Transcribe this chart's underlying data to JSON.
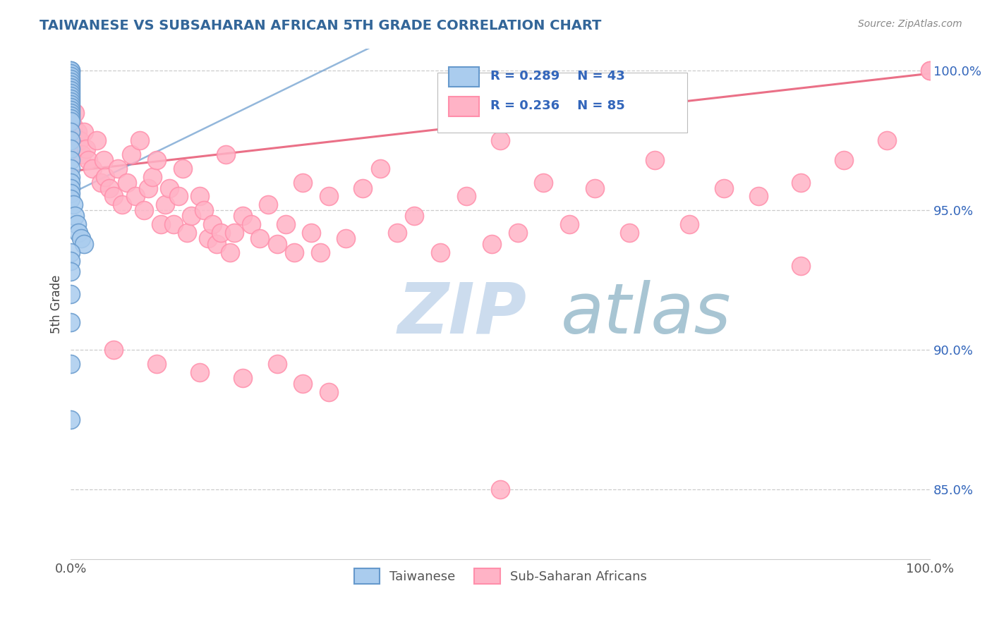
{
  "title": "TAIWANESE VS SUBSAHARAN AFRICAN 5TH GRADE CORRELATION CHART",
  "source": "Source: ZipAtlas.com",
  "ylabel": "5th Grade",
  "xlim": [
    0.0,
    1.0
  ],
  "ylim": [
    0.825,
    1.008
  ],
  "ytick_labels": [
    "85.0%",
    "90.0%",
    "95.0%",
    "100.0%"
  ],
  "ytick_values": [
    0.85,
    0.9,
    0.95,
    1.0
  ],
  "legend_label1": "Taiwanese",
  "legend_label2": "Sub-Saharan Africans",
  "r1": 0.289,
  "n1": 43,
  "r2": 0.236,
  "n2": 85,
  "blue_color": "#6699CC",
  "pink_color": "#FF8FAB",
  "blue_face": "#AACCEE",
  "pink_face": "#FFB3C6",
  "trend_pink": "#E8607A",
  "trend_blue": "#6699CC",
  "watermark_zip_color": "#CCDCEE",
  "watermark_atlas_color": "#99BBDD",
  "background": "#FFFFFF",
  "title_color": "#336699",
  "legend_text_color": "#3366BB",
  "tick_color": "#555555",
  "grid_color": "#CCCCCC",
  "tw_x": [
    0.0,
    0.0,
    0.0,
    0.0,
    0.0,
    0.0,
    0.0,
    0.0,
    0.0,
    0.0,
    0.0,
    0.0,
    0.0,
    0.0,
    0.0,
    0.0,
    0.0,
    0.0,
    0.0,
    0.0,
    0.0,
    0.0,
    0.0,
    0.0,
    0.0,
    0.0,
    0.0,
    0.0,
    0.0,
    0.0,
    0.003,
    0.005,
    0.007,
    0.009,
    0.012,
    0.015,
    0.0,
    0.0,
    0.0,
    0.0,
    0.0,
    0.0,
    0.0
  ],
  "tw_y": [
    1.0,
    1.0,
    0.999,
    0.998,
    0.997,
    0.996,
    0.995,
    0.994,
    0.993,
    0.992,
    0.991,
    0.99,
    0.989,
    0.988,
    0.987,
    0.986,
    0.985,
    0.984,
    0.983,
    0.982,
    0.978,
    0.975,
    0.972,
    0.968,
    0.965,
    0.962,
    0.96,
    0.958,
    0.956,
    0.954,
    0.952,
    0.948,
    0.945,
    0.942,
    0.94,
    0.938,
    0.935,
    0.932,
    0.928,
    0.92,
    0.91,
    0.895,
    0.875
  ],
  "ss_x": [
    0.003,
    0.005,
    0.008,
    0.01,
    0.013,
    0.015,
    0.018,
    0.02,
    0.025,
    0.03,
    0.035,
    0.038,
    0.04,
    0.045,
    0.05,
    0.055,
    0.06,
    0.065,
    0.07,
    0.075,
    0.08,
    0.085,
    0.09,
    0.095,
    0.1,
    0.105,
    0.11,
    0.115,
    0.12,
    0.125,
    0.13,
    0.135,
    0.14,
    0.15,
    0.155,
    0.16,
    0.165,
    0.17,
    0.175,
    0.18,
    0.185,
    0.19,
    0.2,
    0.21,
    0.22,
    0.23,
    0.24,
    0.25,
    0.26,
    0.27,
    0.28,
    0.29,
    0.3,
    0.32,
    0.34,
    0.36,
    0.38,
    0.4,
    0.43,
    0.46,
    0.49,
    0.5,
    0.52,
    0.55,
    0.58,
    0.61,
    0.65,
    0.68,
    0.72,
    0.76,
    0.8,
    0.85,
    0.9,
    0.95,
    1.0,
    1.0,
    0.05,
    0.1,
    0.15,
    0.2,
    0.24,
    0.27,
    0.3,
    0.5,
    0.85
  ],
  "ss_y": [
    0.98,
    0.985,
    0.978,
    0.975,
    0.97,
    0.978,
    0.972,
    0.968,
    0.965,
    0.975,
    0.96,
    0.968,
    0.962,
    0.958,
    0.955,
    0.965,
    0.952,
    0.96,
    0.97,
    0.955,
    0.975,
    0.95,
    0.958,
    0.962,
    0.968,
    0.945,
    0.952,
    0.958,
    0.945,
    0.955,
    0.965,
    0.942,
    0.948,
    0.955,
    0.95,
    0.94,
    0.945,
    0.938,
    0.942,
    0.97,
    0.935,
    0.942,
    0.948,
    0.945,
    0.94,
    0.952,
    0.938,
    0.945,
    0.935,
    0.96,
    0.942,
    0.935,
    0.955,
    0.94,
    0.958,
    0.965,
    0.942,
    0.948,
    0.935,
    0.955,
    0.938,
    0.975,
    0.942,
    0.96,
    0.945,
    0.958,
    0.942,
    0.968,
    0.945,
    0.958,
    0.955,
    0.96,
    0.968,
    0.975,
    1.0,
    1.0,
    0.9,
    0.895,
    0.892,
    0.89,
    0.895,
    0.888,
    0.885,
    0.85,
    0.93
  ]
}
